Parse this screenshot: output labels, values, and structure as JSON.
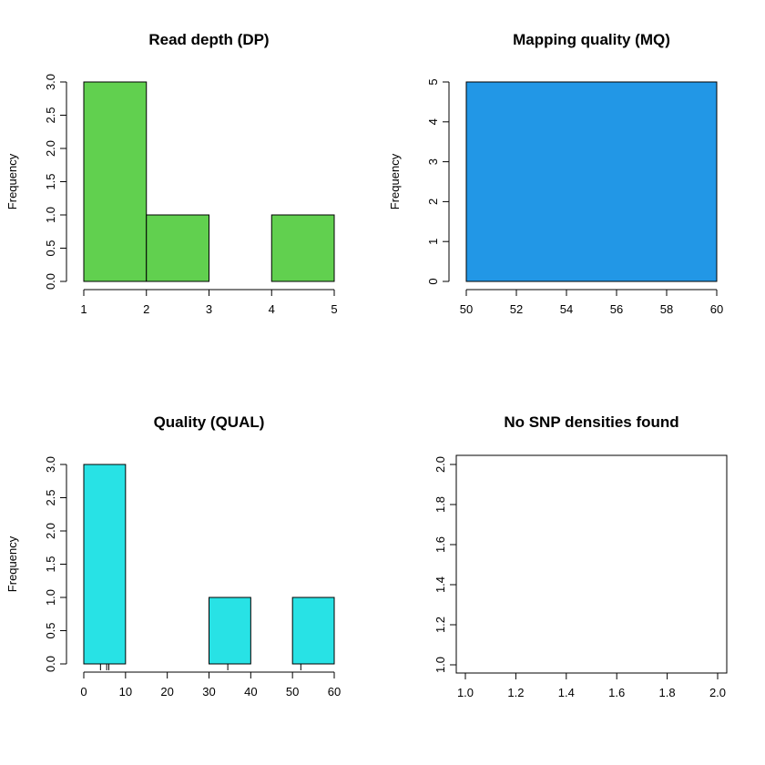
{
  "chart_data": [
    {
      "type": "bar",
      "title": "Read depth (DP)",
      "ylabel": "Frequency",
      "xlabel": "",
      "bin_edges": [
        1,
        2,
        3,
        4,
        5
      ],
      "values": [
        3,
        1,
        0,
        1
      ],
      "xlim": [
        1,
        5
      ],
      "ylim": [
        0,
        3
      ],
      "x_ticks": [
        1,
        2,
        3,
        4,
        5
      ],
      "y_ticks": [
        "0.0",
        "0.5",
        "1.0",
        "1.5",
        "2.0",
        "2.5",
        "3.0"
      ],
      "bar_color": "#61d04f",
      "box": false
    },
    {
      "type": "bar",
      "title": "Mapping quality (MQ)",
      "ylabel": "Frequency",
      "xlabel": "",
      "bin_edges": [
        50,
        60
      ],
      "values": [
        5
      ],
      "xlim": [
        50,
        60
      ],
      "ylim": [
        0,
        5
      ],
      "x_ticks": [
        50,
        52,
        54,
        56,
        58,
        60
      ],
      "y_ticks": [
        "0",
        "1",
        "2",
        "3",
        "4",
        "5"
      ],
      "bar_color": "#2297e6",
      "box": false
    },
    {
      "type": "bar",
      "title": "Quality (QUAL)",
      "ylabel": "Frequency",
      "xlabel": "",
      "bin_edges": [
        0,
        10,
        20,
        30,
        40,
        50,
        60
      ],
      "values": [
        3,
        0,
        0,
        1,
        0,
        1
      ],
      "xlim": [
        0,
        60
      ],
      "ylim": [
        0,
        3
      ],
      "x_ticks": [
        0,
        10,
        20,
        30,
        40,
        50,
        60
      ],
      "y_ticks": [
        "0.0",
        "0.5",
        "1.0",
        "1.5",
        "2.0",
        "2.5",
        "3.0"
      ],
      "bar_color": "#28e2e5",
      "rug": [
        4,
        5.5,
        6,
        34.5,
        52
      ],
      "box": false
    },
    {
      "type": "scatter",
      "title": "No SNP densities found",
      "ylabel": "",
      "xlabel": "",
      "values": [],
      "xlim": [
        1,
        2
      ],
      "ylim": [
        1,
        2
      ],
      "x_ticks": [
        "1.0",
        "1.2",
        "1.4",
        "1.6",
        "1.8",
        "2.0"
      ],
      "y_ticks": [
        "1.0",
        "1.2",
        "1.4",
        "1.6",
        "1.8",
        "2.0"
      ],
      "box": true
    }
  ]
}
